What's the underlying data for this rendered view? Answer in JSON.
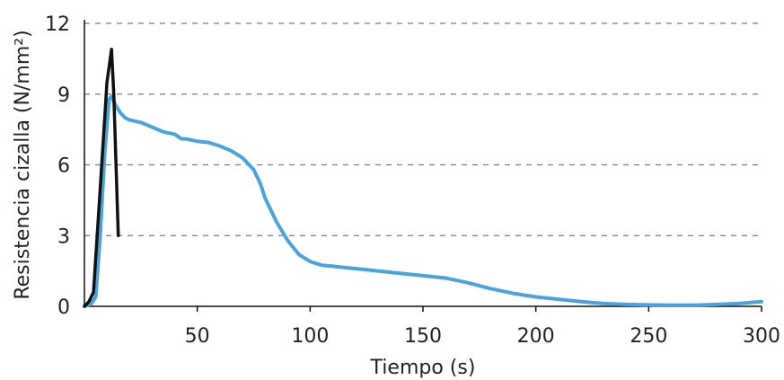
{
  "chart_data": {
    "type": "line",
    "title": "",
    "xlabel": "Tiempo (s)",
    "ylabel": "Resistencia cizalla (N/mm²)",
    "xlim": [
      0,
      300
    ],
    "ylim": [
      0,
      12
    ],
    "x_ticks": [
      50,
      100,
      150,
      200,
      250,
      300
    ],
    "y_ticks": [
      0,
      3,
      6,
      9,
      12
    ],
    "grid": "horizontal dashed",
    "legend": "none",
    "series": [
      {
        "color": "#4aa3df",
        "x": [
          0,
          3,
          5,
          7,
          9,
          11,
          12,
          14,
          16,
          18,
          20,
          25,
          30,
          35,
          40,
          43,
          45,
          50,
          55,
          60,
          65,
          70,
          75,
          78,
          80,
          85,
          90,
          95,
          100,
          105,
          110,
          120,
          130,
          140,
          150,
          160,
          170,
          180,
          190,
          200,
          210,
          220,
          230,
          240,
          250,
          260,
          270,
          280,
          290,
          300
        ],
        "y": [
          0,
          0.1,
          0.4,
          3,
          6.5,
          8.8,
          8.9,
          8.5,
          8.2,
          8.0,
          7.9,
          7.8,
          7.6,
          7.4,
          7.3,
          7.1,
          7.1,
          7.0,
          6.95,
          6.8,
          6.6,
          6.3,
          5.8,
          5.2,
          4.6,
          3.6,
          2.8,
          2.2,
          1.9,
          1.75,
          1.7,
          1.6,
          1.5,
          1.4,
          1.3,
          1.2,
          1.0,
          0.75,
          0.55,
          0.4,
          0.3,
          0.2,
          0.12,
          0.08,
          0.06,
          0.05,
          0.05,
          0.08,
          0.12,
          0.2
        ]
      },
      {
        "color": "#111111",
        "x": [
          0,
          2,
          4,
          7,
          10,
          12,
          13,
          15
        ],
        "y": [
          0,
          0.2,
          0.6,
          5.0,
          9.5,
          10.9,
          9.0,
          3.0
        ]
      }
    ]
  }
}
